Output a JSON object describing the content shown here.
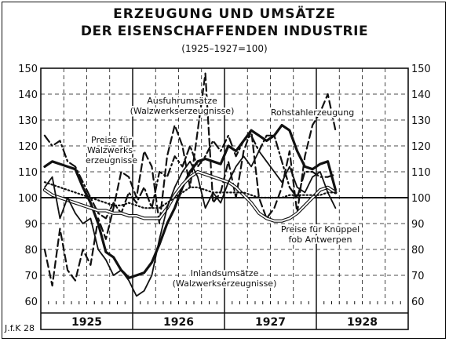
{
  "header": {
    "title_line1": "ERZEUGUNG UND UMSÄTZE",
    "title_line2": "DER EISENSCHAFFENDEN INDUSTRIE",
    "subtitle": "(1925–1927=100)"
  },
  "credit": "J.f.K 28",
  "colors": {
    "ink": "#111111",
    "paper": "#ffffff"
  },
  "chart_data": {
    "type": "line",
    "title": "ERZEUGUNG UND UMSÄTZE DER EISENSCHAFFENDEN INDUSTRIE",
    "subtitle": "(1925–1927=100)",
    "ylim": [
      60,
      150
    ],
    "yticks": [
      60,
      70,
      80,
      90,
      100,
      110,
      120,
      130,
      140,
      150
    ],
    "years": [
      "1925",
      "1926",
      "1927",
      "1928"
    ],
    "months_per_year": 12,
    "x_note": "monthly values, Jan 1925 – Mar 1928 (39 points)",
    "grid": true,
    "reference_line": 100,
    "series": [
      {
        "name": "Rohstahlerzeugung",
        "style": "thick-solid",
        "values": [
          112,
          114,
          113,
          112,
          111,
          104,
          98,
          90,
          79,
          77,
          72,
          69,
          70,
          71,
          75,
          82,
          90,
          96,
          104,
          110,
          114,
          115,
          114,
          113,
          120,
          118,
          122,
          126,
          124,
          122,
          124,
          128,
          126,
          118,
          112,
          111,
          113,
          114,
          103
        ]
      },
      {
        "name": "Ausfuhrumsätze (Walzwerkserzeugnisse)",
        "style": "dashed",
        "values": [
          80,
          66,
          88,
          72,
          68,
          80,
          74,
          92,
          84,
          96,
          110,
          108,
          100,
          118,
          112,
          90,
          116,
          128,
          120,
          104,
          126,
          148,
          98,
          102,
          114,
          100,
          118,
          126,
          100,
          92,
          96,
          104,
          118,
          94,
          116,
          128,
          133,
          140,
          126
        ]
      },
      {
        "name": "Preise für Walzwerkserzeugnisse",
        "style": "dash-dot",
        "values": [
          124,
          120,
          122,
          114,
          112,
          106,
          100,
          94,
          92,
          98,
          94,
          102,
          98,
          104,
          96,
          110,
          108,
          116,
          112,
          120,
          112,
          116,
          122,
          118,
          124,
          116,
          122,
          124,
          118,
          124,
          124,
          114,
          104,
          100,
          110,
          110,
          108,
          108,
          109
        ]
      },
      {
        "name": "Preise für Knüppel fob Antwerpen",
        "style": "double-line",
        "values": [
          103,
          101,
          100,
          99,
          98,
          97,
          96,
          95,
          95,
          94,
          94,
          93,
          93,
          92,
          92,
          92,
          96,
          101,
          105,
          108,
          110,
          109,
          108,
          107,
          106,
          104,
          101,
          98,
          94,
          92,
          91,
          91,
          92,
          94,
          97,
          100,
          103,
          104,
          102
        ]
      },
      {
        "name": "Inlandsumsätze (Walzwerkserzeugnisse)",
        "style": "thin-solid",
        "values": [
          104,
          108,
          92,
          100,
          94,
          90,
          92,
          80,
          76,
          70,
          72,
          68,
          62,
          64,
          70,
          84,
          96,
          104,
          110,
          114,
          108,
          96,
          102,
          98,
          106,
          112,
          116,
          112,
          118,
          114,
          110,
          106,
          112,
          104,
          102,
          108,
          110,
          102,
          96
        ]
      },
      {
        "name": "",
        "style": "dotted",
        "values": [
          106,
          105,
          104,
          103,
          102,
          101,
          100,
          99,
          98,
          97,
          97,
          98,
          97,
          96,
          96,
          96,
          98,
          100,
          102,
          104,
          104,
          103,
          102,
          102,
          102,
          102,
          102,
          101,
          100,
          100,
          100,
          100,
          101,
          101,
          101,
          101,
          101,
          102,
          102
        ]
      }
    ],
    "annotations": [
      {
        "text": "Ausfuhrumsätze",
        "line2": "(Walzwerkserzeugnisse)"
      },
      {
        "text": "Rohstahlerzeugung"
      },
      {
        "text": "Preise für",
        "line2": "Walzwerks-",
        "line3": "erzeugnisse"
      },
      {
        "text": "Preise für Knüppel",
        "line2": "fob Antwerpen"
      },
      {
        "text": "Inlandsumsätze",
        "line2": "(Walzwerkserzeugnisse)"
      }
    ]
  }
}
